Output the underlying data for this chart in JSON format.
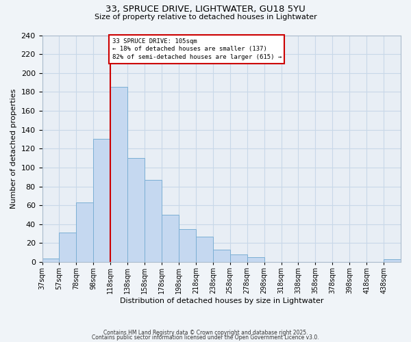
{
  "title1": "33, SPRUCE DRIVE, LIGHTWATER, GU18 5YU",
  "title2": "Size of property relative to detached houses in Lightwater",
  "xlabel": "Distribution of detached houses by size in Lightwater",
  "ylabel": "Number of detached properties",
  "bin_labels": [
    "37sqm",
    "57sqm",
    "78sqm",
    "98sqm",
    "118sqm",
    "138sqm",
    "158sqm",
    "178sqm",
    "198sqm",
    "218sqm",
    "238sqm",
    "258sqm",
    "278sqm",
    "298sqm",
    "318sqm",
    "338sqm",
    "358sqm",
    "378sqm",
    "398sqm",
    "418sqm",
    "438sqm"
  ],
  "bar_values": [
    4,
    31,
    63,
    130,
    185,
    110,
    87,
    50,
    35,
    27,
    13,
    8,
    5,
    0,
    0,
    0,
    0,
    0,
    0,
    0,
    3
  ],
  "bar_color": "#c5d8f0",
  "bar_edge_color": "#7bafd4",
  "grid_color": "#c8d8e8",
  "bg_color": "#e8eef5",
  "fig_color": "#f0f4f8",
  "vline_color": "#cc0000",
  "annotation_line1": "33 SPRUCE DRIVE: 105sqm",
  "annotation_line2": "← 18% of detached houses are smaller (137)",
  "annotation_line3": "82% of semi-detached houses are larger (615) →",
  "annotation_box_color": "#ffffff",
  "annotation_box_edge": "#cc0000",
  "ylim": [
    0,
    240
  ],
  "yticks": [
    0,
    20,
    40,
    60,
    80,
    100,
    120,
    140,
    160,
    180,
    200,
    220,
    240
  ],
  "footer1": "Contains HM Land Registry data © Crown copyright and database right 2025.",
  "footer2": "Contains public sector information licensed under the Open Government Licence v3.0.",
  "bin_edges": [
    27,
    47,
    67,
    87,
    107,
    127,
    147,
    167,
    187,
    207,
    227,
    247,
    267,
    287,
    307,
    327,
    347,
    367,
    387,
    407,
    427,
    447
  ]
}
